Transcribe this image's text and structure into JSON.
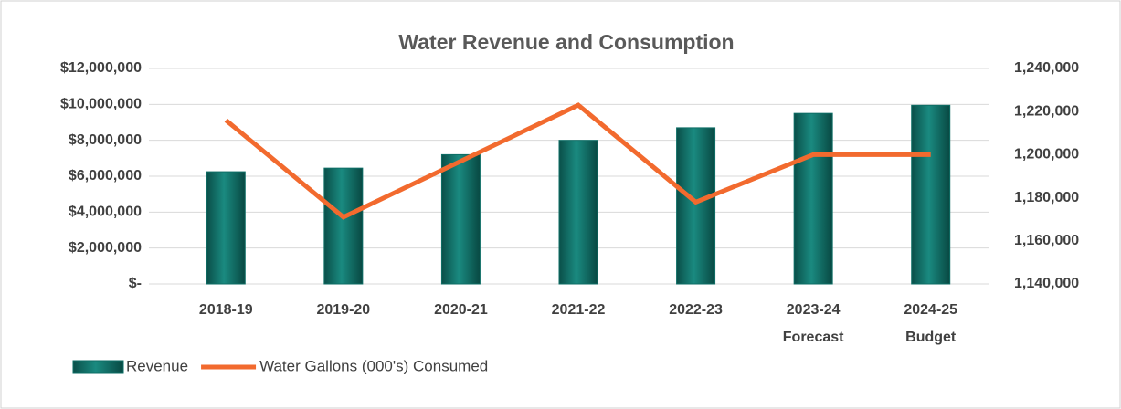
{
  "chart_data": {
    "type": "bar",
    "title": "Water Revenue and Consumption",
    "categories": [
      [
        "2018-19"
      ],
      [
        "2019-20"
      ],
      [
        "2020-21"
      ],
      [
        "2021-22"
      ],
      [
        "2022-23"
      ],
      [
        "2023-24",
        "Forecast"
      ],
      [
        "2024-25",
        "Budget"
      ]
    ],
    "series": [
      {
        "name": "Revenue",
        "type": "bar",
        "color": "#0e6e66",
        "values": [
          6250000,
          6450000,
          7200000,
          8000000,
          8700000,
          9500000,
          9950000
        ]
      },
      {
        "name": "Water Gallons (000's) Consumed",
        "type": "line",
        "axis": "y2",
        "color": "#f26a2e",
        "values": [
          1216000,
          1171000,
          1197000,
          1223000,
          1178000,
          1200000,
          1200000
        ]
      }
    ],
    "ylim": [
      0,
      12000000
    ],
    "yticks": [
      {
        "value": 0,
        "label": "$-"
      },
      {
        "value": 2000000,
        "label": "$2,000,000"
      },
      {
        "value": 4000000,
        "label": "$4,000,000"
      },
      {
        "value": 6000000,
        "label": "$6,000,000"
      },
      {
        "value": 8000000,
        "label": "$8,000,000"
      },
      {
        "value": 10000000,
        "label": "$10,000,000"
      },
      {
        "value": 12000000,
        "label": "$12,000,000"
      }
    ],
    "y2lim": [
      1140000,
      1240000
    ],
    "y2ticks": [
      {
        "value": 1140000,
        "label": "1,140,000"
      },
      {
        "value": 1160000,
        "label": "1,160,000"
      },
      {
        "value": 1180000,
        "label": "1,180,000"
      },
      {
        "value": 1200000,
        "label": "1,200,000"
      },
      {
        "value": 1220000,
        "label": "1,220,000"
      },
      {
        "value": 1240000,
        "label": "1,240,000"
      }
    ],
    "grid": true,
    "legend": "bottom"
  }
}
